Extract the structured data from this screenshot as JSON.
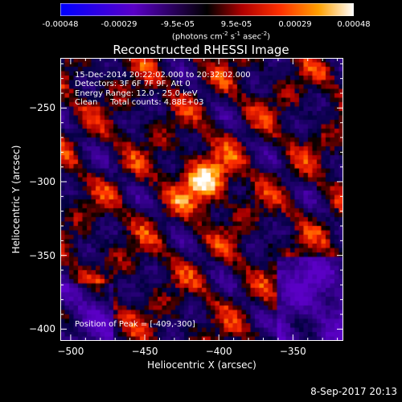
{
  "colorbar": {
    "tick_labels": [
      "-0.00048",
      "-0.00029",
      "-9.5e-05",
      "9.5e-05",
      "0.00029",
      "0.00048"
    ],
    "unit_label": "(photons cm-2 s-1 asec-2)",
    "min": -0.00048,
    "max": 0.00048
  },
  "chart_data": {
    "type": "heatmap",
    "title": "Reconstructed RHESSI Image",
    "xlabel": "Heliocentric X (arcsec)",
    "ylabel": "Heliocentric Y (arcsec)",
    "xlim": [
      -507,
      -316
    ],
    "ylim": [
      -408,
      -216
    ],
    "x_ticks": [
      -500,
      -450,
      -400,
      -350
    ],
    "y_ticks": [
      -250,
      -300,
      -350,
      -400
    ],
    "annotations": [
      "15-Dec-2014 20:22:02.000 to 20:32:02.000",
      "Detectors: 3F 6F 7F 9F, Att 0",
      "Energy Range: 12.0 - 25.0 keV",
      "Clean     Total counts: 4.88E+03"
    ],
    "peak_label": "Position of Peak = [-409,-300]",
    "peak_position": [
      -409,
      -300
    ],
    "colormap": "red-temperature with blue negative",
    "grid": false
  },
  "footer": {
    "timestamp": "8-Sep-2017 20:13"
  }
}
